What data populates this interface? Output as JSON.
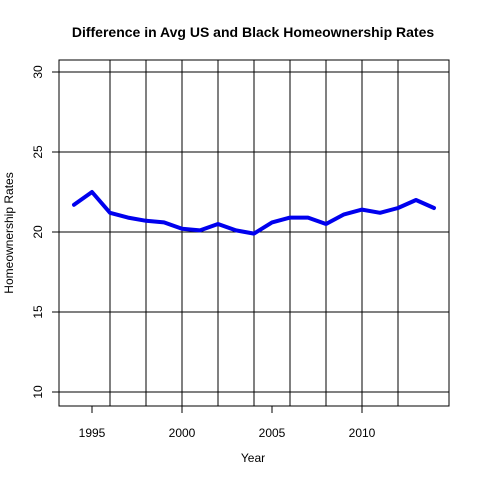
{
  "chart_data": {
    "type": "line",
    "title": "Difference in Avg US and Black Homeownership Rates",
    "xlabel": "Year",
    "ylabel": "Homeownership Rates",
    "xlim": [
      1994,
      2014
    ],
    "ylim": [
      10,
      30
    ],
    "x_ticks": [
      1995,
      2000,
      2005,
      2010
    ],
    "y_ticks": [
      10,
      15,
      20,
      25,
      30
    ],
    "grid": true,
    "colors": {
      "line": "#0000ee",
      "grid": "#000000"
    },
    "series": [
      {
        "x": [
          1994,
          1995,
          1996,
          1997,
          1998,
          1999,
          2000,
          2001,
          2002,
          2003,
          2004,
          2005,
          2006,
          2007,
          2008,
          2009,
          2010,
          2011,
          2012,
          2013,
          2014
        ],
        "values": [
          21.7,
          22.5,
          21.2,
          20.9,
          20.7,
          20.6,
          20.2,
          20.1,
          20.5,
          20.1,
          19.9,
          20.6,
          20.9,
          20.9,
          20.5,
          21.1,
          21.4,
          21.2,
          21.5,
          22.0,
          21.5
        ]
      }
    ]
  }
}
